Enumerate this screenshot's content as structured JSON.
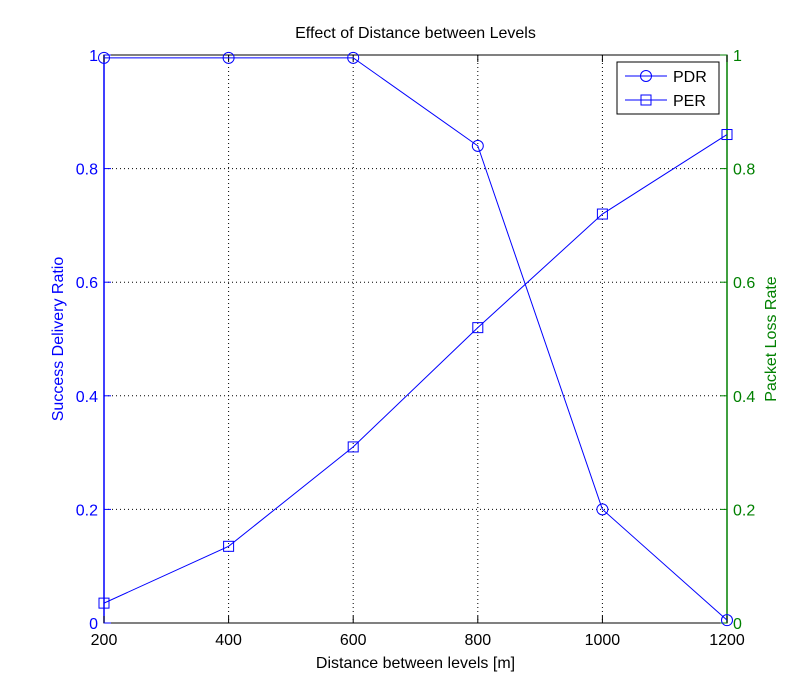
{
  "chart_data": {
    "type": "line",
    "title": "Effect of Distance between Levels",
    "xlabel": "Distance between levels [m]",
    "ylabel_left": "Success Delivery Ratio",
    "ylabel_right": "Packet Loss Rate",
    "xlim": [
      200,
      1200
    ],
    "ylim_left": [
      0,
      1
    ],
    "ylim_right": [
      0,
      1
    ],
    "x_ticks": [
      "200",
      "400",
      "600",
      "800",
      "1000",
      "1200"
    ],
    "y_ticks_left": [
      "0",
      "0.2",
      "0.4",
      "0.6",
      "0.8",
      "1"
    ],
    "y_ticks_right": [
      "0",
      "0.2",
      "0.4",
      "0.6",
      "0.8",
      "1"
    ],
    "grid": true,
    "legend_position": "top-right",
    "x": [
      200,
      400,
      600,
      800,
      1000,
      1200
    ],
    "series": [
      {
        "name": "PDR",
        "marker": "circle",
        "axis": "left",
        "values": [
          0.995,
          0.995,
          0.995,
          0.84,
          0.2,
          0.005
        ]
      },
      {
        "name": "PER",
        "marker": "square",
        "axis": "right",
        "values": [
          0.035,
          0.135,
          0.31,
          0.52,
          0.72,
          0.86
        ]
      }
    ],
    "colors": {
      "line": "#0000ff",
      "left_axis": "#0000ff",
      "right_axis": "#008000",
      "grid": "#000000"
    }
  }
}
